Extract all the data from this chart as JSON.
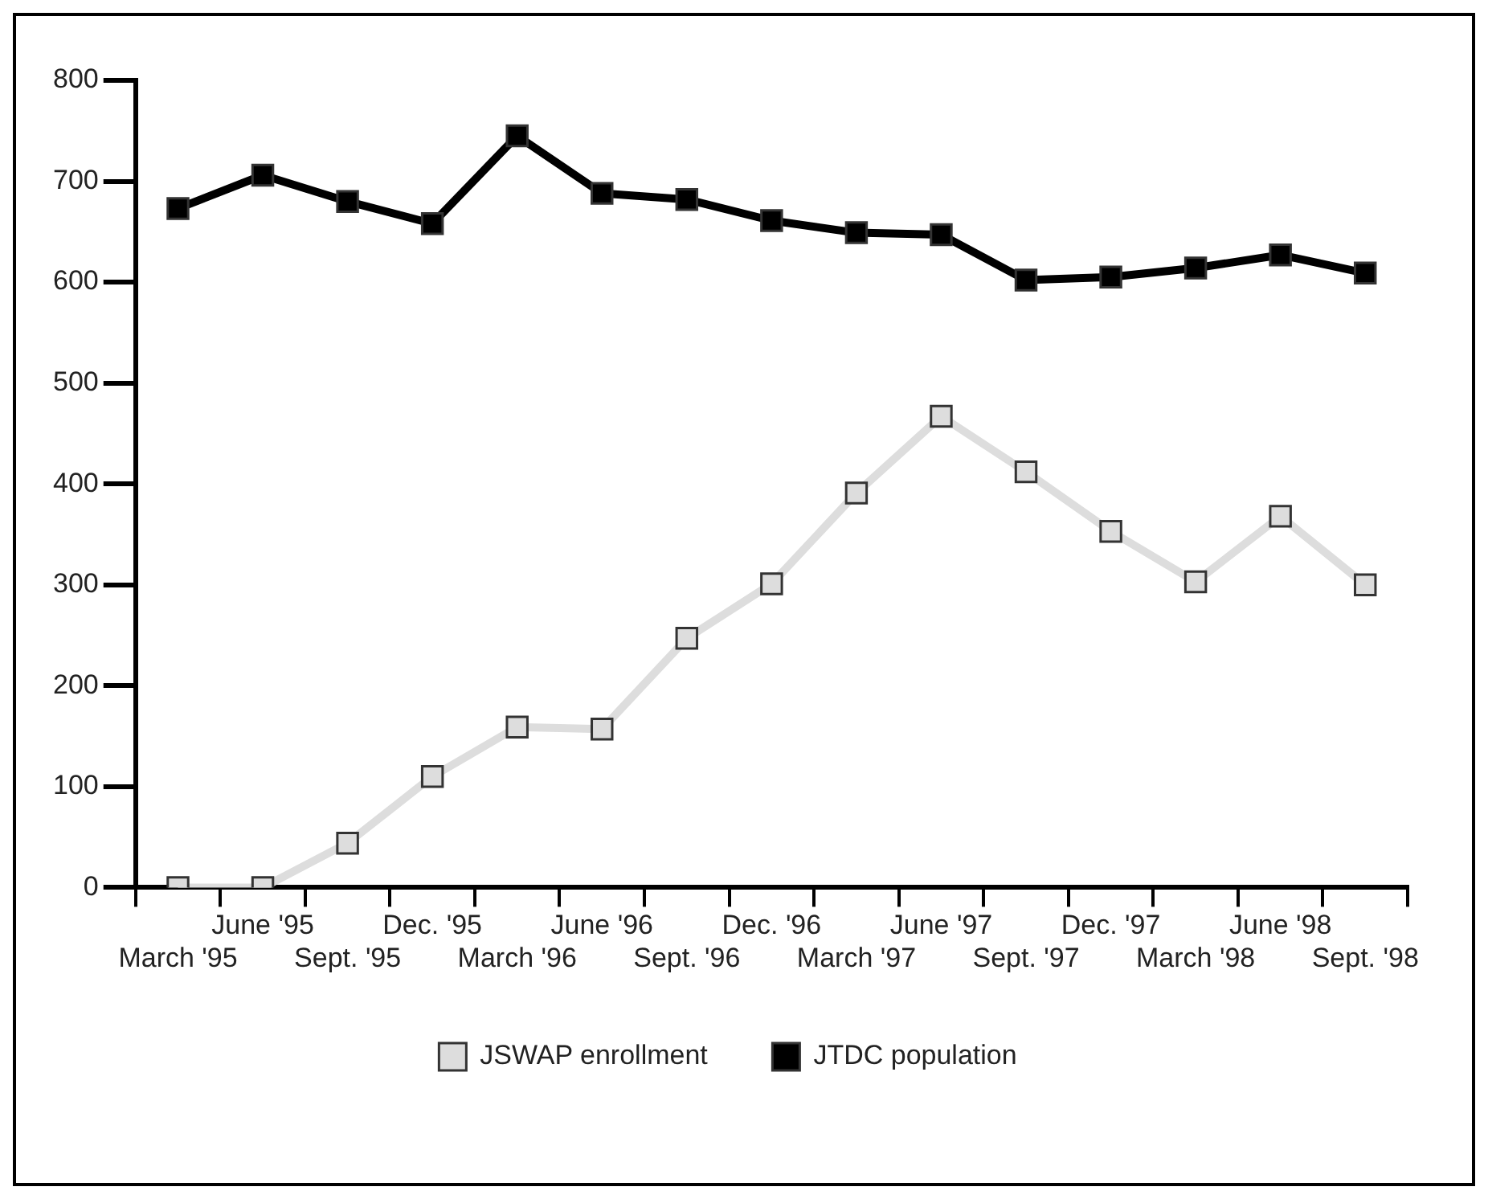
{
  "chart_data": {
    "type": "line",
    "categories": [
      "March '95",
      "June '95",
      "Sept. '95",
      "Dec. '95",
      "March '96",
      "June '96",
      "Sept. '96",
      "Dec. '96",
      "March '97",
      "June '97",
      "Sept. '97",
      "Dec. '97",
      "March '98",
      "June '98",
      "Sept. '98"
    ],
    "series": [
      {
        "name": "JSWAP enrollment",
        "color": "#dddddd",
        "values": [
          0,
          0,
          44,
          110,
          159,
          157,
          247,
          301,
          391,
          467,
          412,
          353,
          303,
          368,
          300
        ]
      },
      {
        "name": "JTDC population",
        "color": "#000000",
        "values": [
          673,
          706,
          680,
          658,
          745,
          688,
          682,
          661,
          649,
          647,
          602,
          605,
          614,
          627,
          609
        ]
      }
    ],
    "ylim": [
      0,
      800
    ],
    "yticks": [
      0,
      100,
      200,
      300,
      400,
      500,
      600,
      700,
      800
    ],
    "grid": false,
    "legend": "bottom",
    "marker": "square",
    "line_style": "solid"
  }
}
